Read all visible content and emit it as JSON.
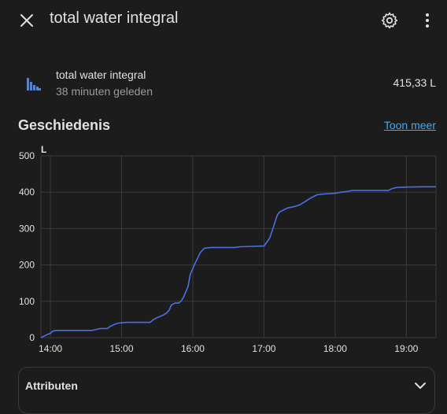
{
  "header": {
    "title": "total water integral",
    "close_icon": "close-icon",
    "settings_icon": "gear-icon",
    "more_icon": "dots-vertical-icon"
  },
  "entity": {
    "name": "total water integral",
    "last_changed": "38 minuten geleden",
    "state": "415,33 L",
    "icon": "bar-chart-icon"
  },
  "history": {
    "title": "Geschiedenis",
    "more_link": "Toon meer"
  },
  "attributes": {
    "title": "Attributen"
  },
  "colors": {
    "background": "#1c1c1c",
    "line": "#4b6fe6",
    "link": "#44a8f0",
    "icon": "#5b82c4"
  },
  "chart_data": {
    "type": "line",
    "ylabel": "L",
    "ylim": [
      0,
      500
    ],
    "yticks": [
      "500",
      "400",
      "300",
      "200",
      "100",
      "0"
    ],
    "xticks": [
      "14:00",
      "15:00",
      "16:00",
      "17:00",
      "18:00",
      "19:00"
    ],
    "grid": true,
    "series": [
      {
        "points": [
          [
            "13:52",
            0
          ],
          [
            "13:57",
            8
          ],
          [
            "14:00",
            12
          ],
          [
            "14:02",
            18
          ],
          [
            "14:05",
            20
          ],
          [
            "14:20",
            20
          ],
          [
            "14:35",
            20
          ],
          [
            "14:38",
            22
          ],
          [
            "14:42",
            25
          ],
          [
            "14:48",
            25
          ],
          [
            "14:50",
            30
          ],
          [
            "14:53",
            35
          ],
          [
            "14:57",
            40
          ],
          [
            "15:05",
            42
          ],
          [
            "15:15",
            42
          ],
          [
            "15:24",
            42
          ],
          [
            "15:27",
            50
          ],
          [
            "15:30",
            55
          ],
          [
            "15:35",
            62
          ],
          [
            "15:38",
            68
          ],
          [
            "15:40",
            75
          ],
          [
            "15:42",
            90
          ],
          [
            "15:45",
            95
          ],
          [
            "15:48",
            95
          ],
          [
            "15:50",
            100
          ],
          [
            "15:52",
            110
          ],
          [
            "15:54",
            125
          ],
          [
            "15:56",
            140
          ],
          [
            "15:58",
            175
          ],
          [
            "16:00",
            190
          ],
          [
            "16:02",
            205
          ],
          [
            "16:04",
            218
          ],
          [
            "16:06",
            232
          ],
          [
            "16:08",
            240
          ],
          [
            "16:10",
            246
          ],
          [
            "16:15",
            248
          ],
          [
            "16:25",
            248
          ],
          [
            "16:35",
            248
          ],
          [
            "16:40",
            250
          ],
          [
            "16:50",
            251
          ],
          [
            "17:00",
            252
          ],
          [
            "17:03",
            265
          ],
          [
            "17:05",
            275
          ],
          [
            "17:07",
            295
          ],
          [
            "17:09",
            315
          ],
          [
            "17:11",
            335
          ],
          [
            "17:13",
            345
          ],
          [
            "17:17",
            352
          ],
          [
            "17:20",
            357
          ],
          [
            "17:25",
            360
          ],
          [
            "17:30",
            365
          ],
          [
            "17:35",
            375
          ],
          [
            "17:40",
            385
          ],
          [
            "17:45",
            393
          ],
          [
            "17:50",
            395
          ],
          [
            "18:00",
            397
          ],
          [
            "18:05",
            400
          ],
          [
            "18:10",
            402
          ],
          [
            "18:15",
            405
          ],
          [
            "18:30",
            405
          ],
          [
            "18:45",
            405
          ],
          [
            "18:48",
            410
          ],
          [
            "18:52",
            413
          ],
          [
            "19:00",
            414
          ],
          [
            "19:15",
            415
          ],
          [
            "19:25",
            415
          ]
        ]
      }
    ]
  }
}
